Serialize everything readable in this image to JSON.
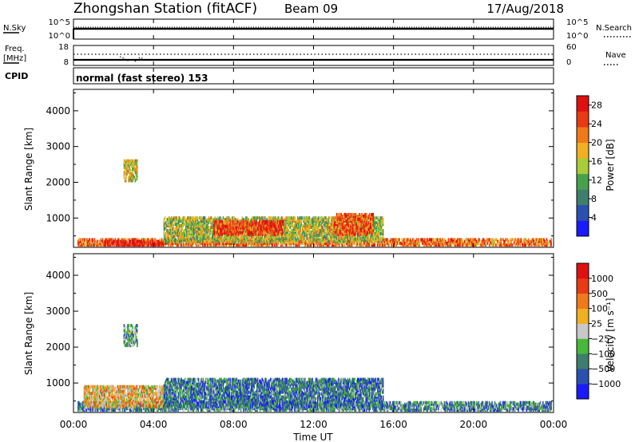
{
  "header": {
    "station": "Zhongshan Station (fitACF)",
    "beam": "Beam 09",
    "date": "17/Aug/2018"
  },
  "noise_panel": {
    "left_label": "N.Sky",
    "left_tick_top": "10^5",
    "left_tick_bottom": "10^0",
    "right_tick_top": "10^5",
    "right_tick_bottom": "10^0",
    "right_label": "N.Search"
  },
  "freq_panel": {
    "left_label_1": "Freq.",
    "left_label_2": "[MHz]",
    "left_tick_top": "18",
    "left_tick_bottom": "8",
    "right_tick_top": "60",
    "right_tick_bottom": "0",
    "right_label": "Nave"
  },
  "cpid_panel": {
    "label": "CPID",
    "mode": "normal (fast stereo) 153"
  },
  "x_axis": {
    "ticks": [
      "00:00",
      "04:00",
      "08:00",
      "12:00",
      "16:00",
      "20:00",
      "00:00"
    ],
    "label": "Time UT"
  },
  "chart_data": [
    {
      "type": "heatmap",
      "name": "power",
      "ylabel": "Slant Range [km]",
      "yticks": [
        "1000",
        "2000",
        "3000",
        "4000"
      ],
      "ylim": [
        180,
        4600
      ],
      "xlim": [
        0,
        24
      ],
      "colorbar": {
        "label": "Power [dB]",
        "ticks": [
          "4",
          "8",
          "12",
          "16",
          "20",
          "24",
          "28"
        ],
        "range": [
          0,
          30
        ],
        "colors": [
          "#1a1aff",
          "#2b50b0",
          "#3e7e6c",
          "#46a24a",
          "#a8cc3a",
          "#f0b020",
          "#f07a1a",
          "#e83a14",
          "#e01010"
        ]
      },
      "bands": [
        {
          "t0": 0.2,
          "t1": 23.9,
          "r0": 200,
          "r1": 400,
          "level": 0.75
        },
        {
          "t0": 1.5,
          "t1": 4.5,
          "r0": 200,
          "r1": 350,
          "level": 0.95
        },
        {
          "t0": 4.5,
          "t1": 15.5,
          "r0": 300,
          "r1": 1000,
          "level": 0.5
        },
        {
          "t0": 7.0,
          "t1": 10.5,
          "r0": 500,
          "r1": 900,
          "level": 0.85
        },
        {
          "t0": 13.0,
          "t1": 15.0,
          "r0": 500,
          "r1": 1100,
          "level": 0.8
        },
        {
          "t0": 2.5,
          "t1": 3.2,
          "r0": 2000,
          "r1": 2600,
          "level": 0.55
        }
      ]
    },
    {
      "type": "heatmap",
      "name": "velocity",
      "ylabel": "Slant Range [km]",
      "yticks": [
        "1000",
        "2000",
        "3000",
        "4000"
      ],
      "ylim": [
        180,
        4600
      ],
      "xlim": [
        0,
        24
      ],
      "colorbar": {
        "label": "Velocity [m s⁻¹]",
        "ticks": [
          "1000",
          "500",
          "100",
          "25",
          "−25",
          "−100",
          "−500",
          "−1000"
        ],
        "colors": [
          "#1a1aff",
          "#2b50b0",
          "#3e7e6c",
          "#46b83a",
          "#c8c8c8",
          "#f0b020",
          "#f07a1a",
          "#e83a14",
          "#e01010"
        ]
      },
      "bands": [
        {
          "t0": 0.2,
          "t1": 23.9,
          "r0": 200,
          "r1": 450,
          "level": 0.3
        },
        {
          "t0": 4.5,
          "t1": 15.5,
          "r0": 300,
          "r1": 1100,
          "level": 0.25
        },
        {
          "t0": 0.5,
          "t1": 4.5,
          "r0": 300,
          "r1": 900,
          "level": 0.6
        },
        {
          "t0": 2.5,
          "t1": 3.2,
          "r0": 2000,
          "r1": 2600,
          "level": 0.35
        }
      ]
    }
  ]
}
